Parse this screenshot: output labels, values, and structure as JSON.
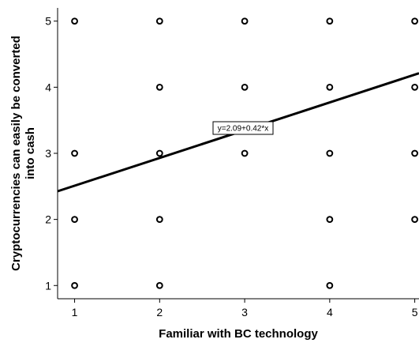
{
  "chart_data": {
    "type": "scatter",
    "xlabel": "Familiar with BC technology",
    "ylabel_lines": [
      "Cryptocurrencies can easily be converted",
      "into cash"
    ],
    "x_ticks": [
      1,
      2,
      3,
      4,
      5
    ],
    "y_ticks": [
      1,
      2,
      3,
      4,
      5
    ],
    "xlim": [
      0.8,
      5.05
    ],
    "ylim": [
      0.8,
      5.2
    ],
    "grid": false,
    "points": [
      {
        "x": 1,
        "y": 5
      },
      {
        "x": 2,
        "y": 5
      },
      {
        "x": 3,
        "y": 5
      },
      {
        "x": 4,
        "y": 5
      },
      {
        "x": 5,
        "y": 5
      },
      {
        "x": 2,
        "y": 4
      },
      {
        "x": 3,
        "y": 4
      },
      {
        "x": 4,
        "y": 4
      },
      {
        "x": 5,
        "y": 4
      },
      {
        "x": 1,
        "y": 3
      },
      {
        "x": 2,
        "y": 3
      },
      {
        "x": 3,
        "y": 3
      },
      {
        "x": 4,
        "y": 3
      },
      {
        "x": 5,
        "y": 3
      },
      {
        "x": 1,
        "y": 2
      },
      {
        "x": 2,
        "y": 2
      },
      {
        "x": 4,
        "y": 2
      },
      {
        "x": 5,
        "y": 2
      },
      {
        "x": 1,
        "y": 1
      },
      {
        "x": 2,
        "y": 1
      },
      {
        "x": 4,
        "y": 1
      }
    ],
    "fit_line": {
      "intercept": 2.09,
      "slope": 0.42
    },
    "equation_label": "y=2.09+0.42*x"
  }
}
